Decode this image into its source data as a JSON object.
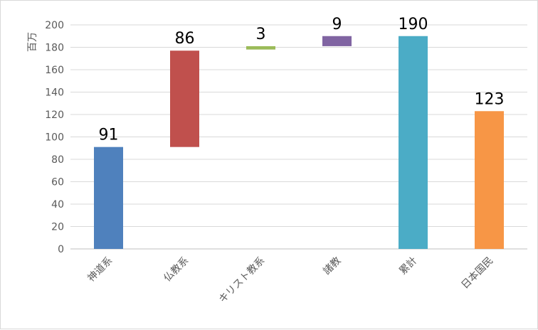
{
  "chart_data": {
    "type": "bar",
    "ylabel": "百万",
    "ylim": [
      0,
      200
    ],
    "ytick_step": 20,
    "grid": true,
    "categories": [
      "神道系",
      "仏教系",
      "キリスト教系",
      "諸教",
      "累計",
      "日本国民"
    ],
    "bars": [
      {
        "category": "神道系",
        "base": 0,
        "value": 91,
        "label": "91",
        "color": "#4f81bd"
      },
      {
        "category": "仏教系",
        "base": 91,
        "value": 86,
        "label": "86",
        "color": "#c0504d"
      },
      {
        "category": "キリスト教系",
        "base": 178,
        "value": 3,
        "label": "3",
        "color": "#9bbb59"
      },
      {
        "category": "諸教",
        "base": 181,
        "value": 9,
        "label": "9",
        "color": "#8064a2"
      },
      {
        "category": "累計",
        "base": 0,
        "value": 190,
        "label": "190",
        "color": "#4bacc6"
      },
      {
        "category": "日本国民",
        "base": 0,
        "value": 123,
        "label": "123",
        "color": "#f79646"
      }
    ]
  }
}
